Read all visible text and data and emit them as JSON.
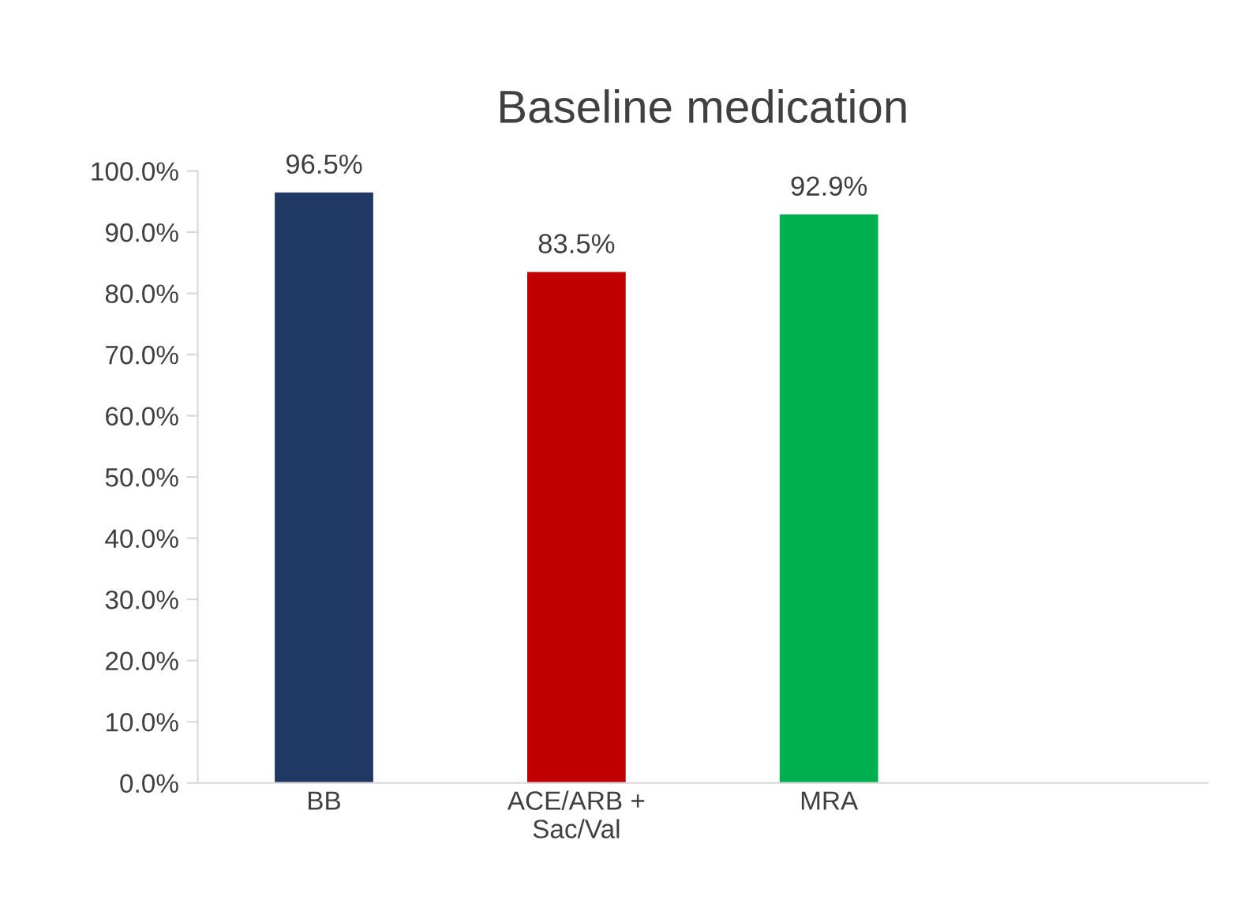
{
  "chart_data": {
    "type": "bar",
    "title": "Baseline medication",
    "categories": [
      "BB",
      "ACE/ARB + Sac/Val",
      "MRA",
      null
    ],
    "values": [
      96.5,
      83.5,
      92.9,
      null
    ],
    "colors": [
      "#1f3864",
      "#c00000",
      "#00b050",
      "#7f7f7f"
    ],
    "value_labels": [
      "96.5%",
      "83.5%",
      "92.9%",
      null
    ],
    "ylim": [
      0,
      100
    ],
    "yticks": [
      {
        "value": 0,
        "label": "0.0%"
      },
      {
        "value": 10,
        "label": "10.0%"
      },
      {
        "value": 20,
        "label": "20.0%"
      },
      {
        "value": 30,
        "label": "30.0%"
      },
      {
        "value": 40,
        "label": "40.0%"
      },
      {
        "value": 50,
        "label": "50.0%"
      },
      {
        "value": 60,
        "label": "60.0%"
      },
      {
        "value": 70,
        "label": "70.0%"
      },
      {
        "value": 80,
        "label": "80.0%"
      },
      {
        "value": 90,
        "label": "90.0%"
      },
      {
        "value": 100,
        "label": "100.0%"
      }
    ],
    "grid": false
  }
}
